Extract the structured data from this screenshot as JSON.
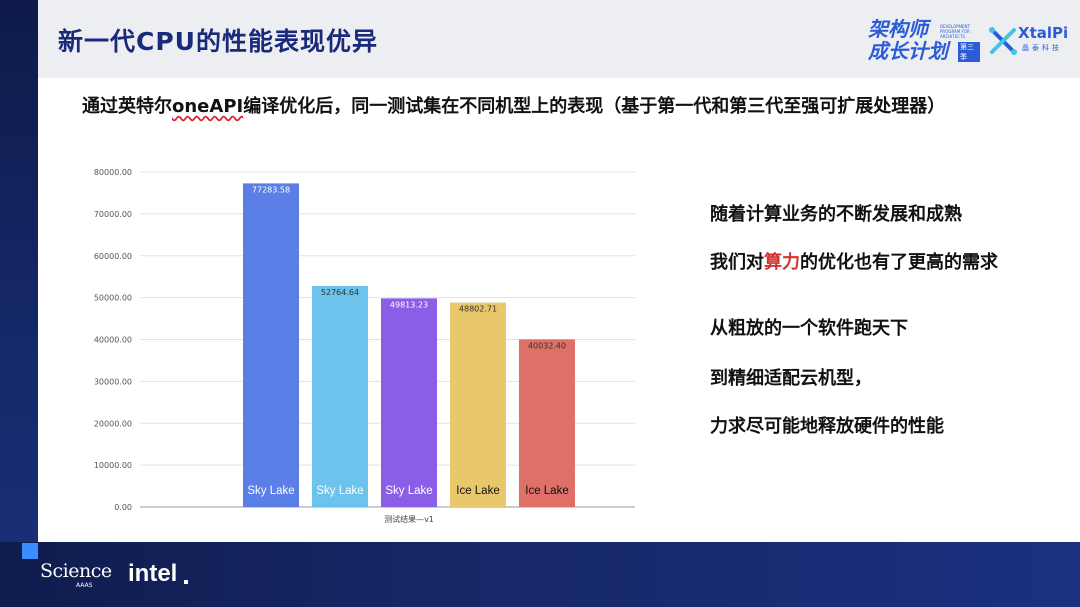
{
  "header": {
    "title": "新一代CPU的性能表现优异",
    "program_logo": {
      "main": "架构师\n成长计划",
      "small": "DEVELOPMENT PROGRAM FOR ARCHITECTS",
      "badge": "第三季"
    },
    "company_logo": {
      "name": "XtalPi",
      "sub": "晶泰科技",
      "icon": "xtalpi-logo-icon"
    }
  },
  "subtitle": {
    "prefix": "通过英特尔",
    "underlined": "oneAPI",
    "suffix": "编译优化后，同一测试集在不同机型上的表现（基于第一代和第三代至强可扩展处理器）"
  },
  "chart_data": {
    "type": "bar",
    "categories": [
      "Sky Lake",
      "Sky Lake",
      "Sky Lake",
      "Ice Lake",
      "Ice Lake"
    ],
    "values": [
      77283.58,
      52764.64,
      49813.23,
      48802.71,
      40032.4
    ],
    "data_labels": [
      "77283.58",
      "52764.64",
      "49813.23",
      "48802.71",
      "40032.40"
    ],
    "colors": [
      "#5b7fe6",
      "#6cc3ec",
      "#8b5ee8",
      "#e8c86a",
      "#de7067"
    ],
    "xlabel": "测试结果—v1",
    "ylabel": "",
    "ylim": [
      0,
      80000
    ],
    "yticks": [
      "0.00",
      "10000.00",
      "20000.00",
      "30000.00",
      "40000.00",
      "50000.00",
      "60000.00",
      "70000.00",
      "80000.00"
    ],
    "grid": true
  },
  "right_text": {
    "line1": "随着计算业务的不断发展和成熟",
    "line2_prefix": "我们对",
    "line2_highlight": "算力",
    "line2_suffix": "的优化也有了更高的需求",
    "line3": "从粗放的一个软件跑天下",
    "line4": "到精细适配云机型，",
    "line5": "力求尽可能地释放硬件的性能"
  },
  "footer": {
    "science": "Science",
    "aaas": "AAAS",
    "intel": "intel"
  }
}
